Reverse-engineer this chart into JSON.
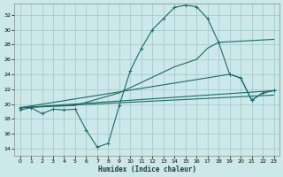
{
  "xlabel": "Humidex (Indice chaleur)",
  "bg_color": "#cce8e8",
  "grid_color": "#aacccc",
  "line_color": "#1a6b6b",
  "xlim": [
    -0.5,
    23.5
  ],
  "ylim": [
    13,
    33.5
  ],
  "xticks": [
    0,
    1,
    2,
    3,
    4,
    5,
    6,
    7,
    8,
    9,
    10,
    11,
    12,
    13,
    14,
    15,
    16,
    17,
    18,
    19,
    20,
    21,
    22,
    23
  ],
  "yticks": [
    14,
    16,
    18,
    20,
    22,
    24,
    26,
    28,
    30,
    32
  ],
  "line1_x": [
    0,
    1,
    2,
    3,
    4,
    5,
    6,
    7,
    8,
    9,
    10,
    11,
    12,
    13,
    14,
    15,
    16,
    17,
    18,
    19,
    20,
    21,
    22,
    23
  ],
  "line1_y": [
    19.2,
    19.5,
    18.7,
    19.3,
    19.2,
    19.3,
    16.5,
    14.2,
    14.7,
    19.8,
    24.5,
    27.5,
    30.0,
    31.5,
    33.0,
    33.3,
    33.1,
    31.5,
    28.3,
    24.0,
    23.5,
    20.5,
    21.5,
    21.8
  ],
  "line2_x": [
    0,
    5,
    9,
    14,
    15,
    16,
    17,
    18,
    23
  ],
  "line2_y": [
    19.5,
    19.8,
    21.5,
    25.0,
    25.5,
    26.0,
    27.5,
    28.3,
    28.7
  ],
  "line3_x": [
    0,
    19,
    20,
    21,
    22,
    23
  ],
  "line3_y": [
    19.5,
    24.0,
    23.5,
    20.5,
    21.5,
    21.8
  ],
  "line4_x": [
    0,
    23
  ],
  "line4_y": [
    19.5,
    21.8
  ],
  "line5_x": [
    0,
    23
  ],
  "line5_y": [
    19.5,
    21.2
  ]
}
